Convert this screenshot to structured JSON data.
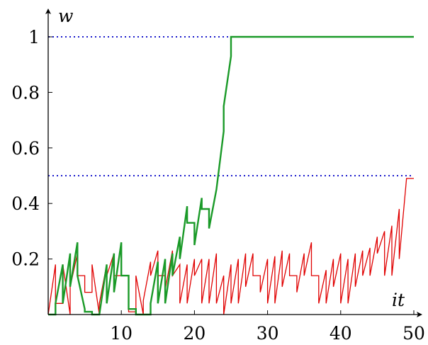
{
  "chart_data": {
    "type": "line",
    "title": "",
    "xlabel": "it",
    "ylabel": "w",
    "xlim": [
      0,
      50
    ],
    "ylim": [
      0,
      1
    ],
    "xticks": [
      "10",
      "20",
      "30",
      "40",
      "50"
    ],
    "yticks": [
      "0.2",
      "0.4",
      "0.6",
      "0.8",
      "1"
    ],
    "grid": false,
    "legend": "none",
    "reference_lines": [
      {
        "y": 1.0,
        "color": "#1a1acc",
        "style": "dotted"
      },
      {
        "y": 0.5,
        "color": "#1a1acc",
        "style": "dotted"
      }
    ],
    "series": [
      {
        "color": "#e00000",
        "values": [
          [
            0,
            0
          ],
          [
            1,
            0.18
          ],
          [
            1,
            0.04
          ],
          [
            2,
            0.04
          ],
          [
            2,
            0.18
          ],
          [
            3,
            0
          ],
          [
            3,
            0.1
          ],
          [
            4,
            0.22
          ],
          [
            4,
            0.14
          ],
          [
            5,
            0.14
          ],
          [
            5,
            0.08
          ],
          [
            6,
            0.08
          ],
          [
            6,
            0.18
          ],
          [
            7,
            0
          ],
          [
            7,
            0.04
          ],
          [
            8,
            0.18
          ],
          [
            8,
            0.14
          ],
          [
            9,
            0.22
          ],
          [
            9,
            0.14
          ],
          [
            10,
            0.14
          ],
          [
            10,
            0.14
          ],
          [
            11,
            0.14
          ],
          [
            11,
            0.01
          ],
          [
            12,
            0.01
          ],
          [
            12,
            0.14
          ],
          [
            13,
            0
          ],
          [
            13,
            0.05
          ],
          [
            14,
            0.19
          ],
          [
            14,
            0.14
          ],
          [
            15,
            0.23
          ],
          [
            15,
            0.14
          ],
          [
            16,
            0.14
          ],
          [
            16,
            0.09
          ],
          [
            17,
            0.23
          ],
          [
            17,
            0.14
          ],
          [
            18,
            0.18
          ],
          [
            18,
            0.04
          ],
          [
            19,
            0.18
          ],
          [
            19,
            0.04
          ],
          [
            20,
            0.2
          ],
          [
            20,
            0.14
          ],
          [
            21,
            0.2
          ],
          [
            21,
            0.04
          ],
          [
            22,
            0.2
          ],
          [
            22,
            0.04
          ],
          [
            23,
            0.22
          ],
          [
            23,
            0.04
          ],
          [
            24,
            0.14
          ],
          [
            24,
            0
          ],
          [
            25,
            0.18
          ],
          [
            25,
            0.04
          ],
          [
            26,
            0.2
          ],
          [
            26,
            0.04
          ],
          [
            27,
            0.22
          ],
          [
            27,
            0.1
          ],
          [
            28,
            0.22
          ],
          [
            28,
            0.14
          ],
          [
            29,
            0.14
          ],
          [
            29,
            0.08
          ],
          [
            30,
            0.2
          ],
          [
            30,
            0.04
          ],
          [
            31,
            0.21
          ],
          [
            31,
            0.04
          ],
          [
            32,
            0.23
          ],
          [
            32,
            0.1
          ],
          [
            33,
            0.22
          ],
          [
            33,
            0.14
          ],
          [
            34,
            0.14
          ],
          [
            34,
            0.08
          ],
          [
            35,
            0.22
          ],
          [
            35,
            0.14
          ],
          [
            36,
            0.26
          ],
          [
            36,
            0.14
          ],
          [
            37,
            0.14
          ],
          [
            37,
            0.04
          ],
          [
            38,
            0.16
          ],
          [
            38,
            0.04
          ],
          [
            39,
            0.2
          ],
          [
            39,
            0.1
          ],
          [
            40,
            0.22
          ],
          [
            40,
            0.04
          ],
          [
            41,
            0.2
          ],
          [
            41,
            0.04
          ],
          [
            42,
            0.22
          ],
          [
            42,
            0.1
          ],
          [
            43,
            0.23
          ],
          [
            43,
            0.14
          ],
          [
            44,
            0.24
          ],
          [
            44,
            0.14
          ],
          [
            45,
            0.28
          ],
          [
            45,
            0.22
          ],
          [
            46,
            0.3
          ],
          [
            46,
            0.14
          ],
          [
            47,
            0.32
          ],
          [
            47,
            0.14
          ],
          [
            48,
            0.38
          ],
          [
            48,
            0.2
          ],
          [
            49,
            0.49
          ],
          [
            50,
            0.49
          ]
        ]
      },
      {
        "color": "#1a9a28",
        "values": [
          [
            0,
            0
          ],
          [
            1,
            0
          ],
          [
            1,
            0.04
          ],
          [
            2,
            0.18
          ],
          [
            2,
            0.04
          ],
          [
            3,
            0.22
          ],
          [
            3,
            0.1
          ],
          [
            4,
            0.26
          ],
          [
            4,
            0.14
          ],
          [
            5,
            0.02
          ],
          [
            5,
            0.01
          ],
          [
            6,
            0.01
          ],
          [
            6,
            0
          ],
          [
            7,
            0
          ],
          [
            8,
            0.18
          ],
          [
            8,
            0.04
          ],
          [
            9,
            0.22
          ],
          [
            9,
            0.08
          ],
          [
            10,
            0.26
          ],
          [
            10,
            0.14
          ],
          [
            11,
            0.14
          ],
          [
            11,
            0.02
          ],
          [
            12,
            0.02
          ],
          [
            12,
            0
          ],
          [
            13,
            0
          ],
          [
            14,
            0
          ],
          [
            14,
            0.04
          ],
          [
            15,
            0.19
          ],
          [
            15,
            0.04
          ],
          [
            16,
            0.2
          ],
          [
            16,
            0.04
          ],
          [
            17,
            0.22
          ],
          [
            17,
            0.14
          ],
          [
            18,
            0.28
          ],
          [
            18,
            0.2
          ],
          [
            19,
            0.39
          ],
          [
            19,
            0.33
          ],
          [
            20,
            0.33
          ],
          [
            20,
            0.25
          ],
          [
            21,
            0.42
          ],
          [
            21,
            0.38
          ],
          [
            22,
            0.38
          ],
          [
            22,
            0.31
          ],
          [
            23,
            0.45
          ],
          [
            24,
            0.66
          ],
          [
            24,
            0.75
          ],
          [
            25,
            0.93
          ],
          [
            25,
            1.0
          ],
          [
            50,
            1.0
          ]
        ]
      }
    ]
  }
}
